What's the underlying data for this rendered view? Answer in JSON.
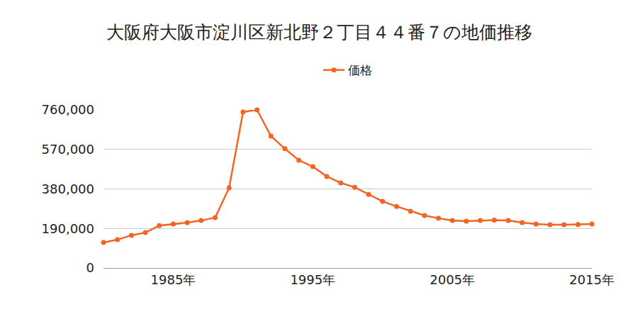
{
  "chart_data": {
    "type": "line",
    "title": "大阪府大阪市淀川区新北野２丁目４４番７の地価推移",
    "x": [
      1980,
      1981,
      1982,
      1983,
      1984,
      1985,
      1986,
      1987,
      1988,
      1989,
      1990,
      1991,
      1992,
      1993,
      1994,
      1995,
      1996,
      1997,
      1998,
      1999,
      2000,
      2001,
      2002,
      2003,
      2004,
      2005,
      2006,
      2007,
      2008,
      2009,
      2010,
      2011,
      2012,
      2013,
      2014,
      2015
    ],
    "series": [
      {
        "name": "価格",
        "color": "#f26522",
        "marker": "circle",
        "line_style": "solid",
        "values": [
          123000,
          136000,
          157000,
          170000,
          204000,
          211000,
          218000,
          228000,
          242000,
          385000,
          750000,
          760000,
          634000,
          573000,
          518000,
          487000,
          440000,
          409000,
          388000,
          354000,
          320000,
          296000,
          273000,
          252000,
          239000,
          228000,
          225000,
          228000,
          230000,
          228000,
          218000,
          211000,
          208000,
          208000,
          209000,
          211000
        ]
      }
    ],
    "xlim": [
      1980,
      2015
    ],
    "xticks": [
      {
        "value": 1985,
        "label": "1985年"
      },
      {
        "value": 1995,
        "label": "1995年"
      },
      {
        "value": 2005,
        "label": "2005年"
      },
      {
        "value": 2015,
        "label": "2015年"
      }
    ],
    "ylim": [
      0,
      760000
    ],
    "yticks": [
      0,
      {
        "value": 190000,
        "label": "190,000"
      },
      {
        "value": 380000,
        "label": "380,000"
      },
      {
        "value": 570000,
        "label": "570,000"
      },
      {
        "value": 760000,
        "label": "760,000"
      }
    ],
    "grid": true,
    "legend": "top"
  }
}
